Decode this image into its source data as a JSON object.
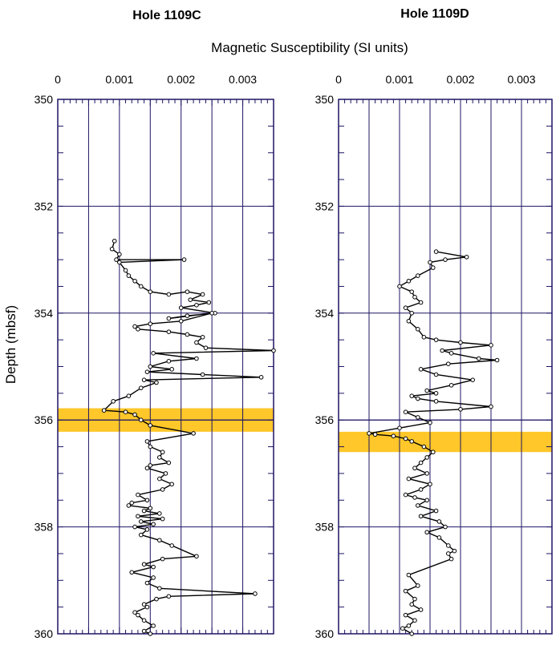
{
  "chart_data": [
    {
      "type": "line",
      "title": "Hole 1109C",
      "xlabel": "Magnetic Susceptibility (SI units)",
      "ylabel": "Depth (mbsf)",
      "xlim": [
        0,
        0.0035
      ],
      "ylim": [
        350,
        360
      ],
      "y_inverted": true,
      "x_ticks": [
        "0",
        "0.001",
        "0.002",
        "0.003"
      ],
      "y_ticks": [
        "350",
        "352",
        "354",
        "356",
        "358",
        "360"
      ],
      "highlight_band": [
        355.78,
        356.22
      ],
      "marker_line": 356.0,
      "grid": true,
      "series": [
        {
          "x": [
            0.00092,
            0.00088,
            0.001,
            0.00095,
            0.00205,
            0.001,
            0.0011,
            0.00115,
            0.00125,
            0.00135,
            0.0015,
            0.0018,
            0.0021,
            0.00235,
            0.00215,
            0.00245,
            0.00225,
            0.002,
            0.00255,
            0.0021,
            0.0018,
            0.0025,
            0.002,
            0.0015,
            0.00125,
            0.0013,
            0.0018,
            0.0021,
            0.00235,
            0.00225,
            0.0024,
            0.0035,
            0.00155,
            0.00225,
            0.0018,
            0.0015,
            0.00185,
            0.00145,
            0.00235,
            0.0033,
            0.0014,
            0.0016,
            0.00135,
            0.00115,
            0.0009,
            0.00075,
            0.0011,
            0.00125,
            0.00135,
            0.0015,
            0.0022,
            0.00145,
            0.0015,
            0.0017,
            0.00165,
            0.0018,
            0.0015,
            0.00145,
            0.00175,
            0.00165,
            0.00185,
            0.0017,
            0.0013,
            0.00145,
            0.0012,
            0.00115,
            0.0015,
            0.0014,
            0.00165,
            0.0013,
            0.0017,
            0.00135,
            0.00155,
            0.00125,
            0.00145,
            0.00135,
            0.00165,
            0.00185,
            0.00225,
            0.0017,
            0.0014,
            0.00155,
            0.0012,
            0.00155,
            0.00145,
            0.00165,
            0.0032,
            0.0018,
            0.0016,
            0.0014,
            0.00145,
            0.00125,
            0.0013,
            0.0014,
            0.00155,
            0.0014,
            0.0015
          ],
          "y": [
            352.65,
            352.8,
            352.9,
            353.0,
            353.0,
            353.05,
            353.2,
            353.3,
            353.4,
            353.5,
            353.6,
            353.65,
            353.6,
            353.65,
            353.75,
            353.8,
            353.85,
            353.9,
            354.0,
            354.05,
            354.1,
            354.0,
            354.15,
            354.2,
            354.25,
            354.3,
            354.35,
            354.4,
            354.45,
            354.55,
            354.65,
            354.7,
            354.75,
            354.85,
            354.9,
            355.0,
            355.05,
            355.1,
            355.15,
            355.2,
            355.25,
            355.3,
            355.4,
            355.55,
            355.65,
            355.82,
            355.85,
            355.9,
            356.0,
            356.1,
            356.25,
            356.4,
            356.5,
            356.6,
            356.7,
            356.8,
            356.85,
            356.9,
            357.0,
            357.1,
            357.2,
            357.3,
            357.4,
            357.5,
            357.55,
            357.6,
            357.65,
            357.7,
            357.75,
            357.8,
            357.85,
            357.9,
            357.95,
            358.0,
            358.05,
            358.15,
            358.25,
            358.35,
            358.55,
            358.6,
            358.7,
            358.75,
            358.85,
            358.95,
            359.05,
            359.15,
            359.25,
            359.3,
            359.35,
            359.45,
            359.5,
            359.6,
            359.65,
            359.75,
            359.85,
            359.95,
            360.0
          ]
        }
      ]
    },
    {
      "type": "line",
      "title": "Hole 1109D",
      "xlabel": "",
      "ylabel": "",
      "xlim": [
        0,
        0.0035
      ],
      "ylim": [
        350,
        360
      ],
      "y_inverted": true,
      "x_ticks": [
        "0",
        "0.001",
        "0.002",
        "0.003"
      ],
      "y_ticks": [
        "350",
        "352",
        "354",
        "356",
        "358",
        "360"
      ],
      "highlight_band": [
        356.22,
        356.6
      ],
      "marker_line": 356.0,
      "grid": true,
      "series": [
        {
          "x": [
            0.0016,
            0.0021,
            0.00175,
            0.0015,
            0.00155,
            0.0013,
            0.00115,
            0.001,
            0.0012,
            0.00125,
            0.00135,
            0.0011,
            0.0012,
            0.00115,
            0.0013,
            0.0014,
            0.0016,
            0.002,
            0.0025,
            0.0017,
            0.00185,
            0.0023,
            0.0026,
            0.0018,
            0.00135,
            0.0016,
            0.0022,
            0.00185,
            0.00145,
            0.0016,
            0.0012,
            0.0013,
            0.0016,
            0.0025,
            0.002,
            0.0011,
            0.0013,
            0.0015,
            0.001,
            0.0005,
            0.0006,
            0.0009,
            0.0011,
            0.0012,
            0.0014,
            0.00155,
            0.00145,
            0.00135,
            0.00125,
            0.00145,
            0.00115,
            0.0015,
            0.00135,
            0.0011,
            0.00125,
            0.00145,
            0.0013,
            0.0016,
            0.00135,
            0.00165,
            0.00175,
            0.00145,
            0.00165,
            0.0018,
            0.0019,
            0.0018,
            0.00185,
            0.00115,
            0.0013,
            0.0011,
            0.00125,
            0.0012,
            0.00135,
            0.0011,
            0.00125,
            0.00115,
            0.00105,
            0.0012
          ],
          "y": [
            352.85,
            352.95,
            353.0,
            353.05,
            353.15,
            353.3,
            353.4,
            353.5,
            353.6,
            353.7,
            353.8,
            353.9,
            354.0,
            354.15,
            354.3,
            354.45,
            354.5,
            354.55,
            354.6,
            354.7,
            354.75,
            354.85,
            354.88,
            354.95,
            355.05,
            355.15,
            355.25,
            355.35,
            355.45,
            355.5,
            355.55,
            355.6,
            355.65,
            355.75,
            355.8,
            355.85,
            355.95,
            356.05,
            356.15,
            356.25,
            356.27,
            356.3,
            356.35,
            356.4,
            356.5,
            356.6,
            356.7,
            356.8,
            356.9,
            357.0,
            357.1,
            357.2,
            357.3,
            357.4,
            357.45,
            357.5,
            357.6,
            357.7,
            357.8,
            357.9,
            358.0,
            358.1,
            358.2,
            358.35,
            358.45,
            358.5,
            358.6,
            358.9,
            359.1,
            359.2,
            359.35,
            359.45,
            359.55,
            359.65,
            359.75,
            359.85,
            359.9,
            360.0
          ]
        }
      ]
    }
  ],
  "colors": {
    "frame": "#1e1464",
    "band": "#ffc729",
    "line": "#000000",
    "marker_fill": "#ffffff"
  }
}
